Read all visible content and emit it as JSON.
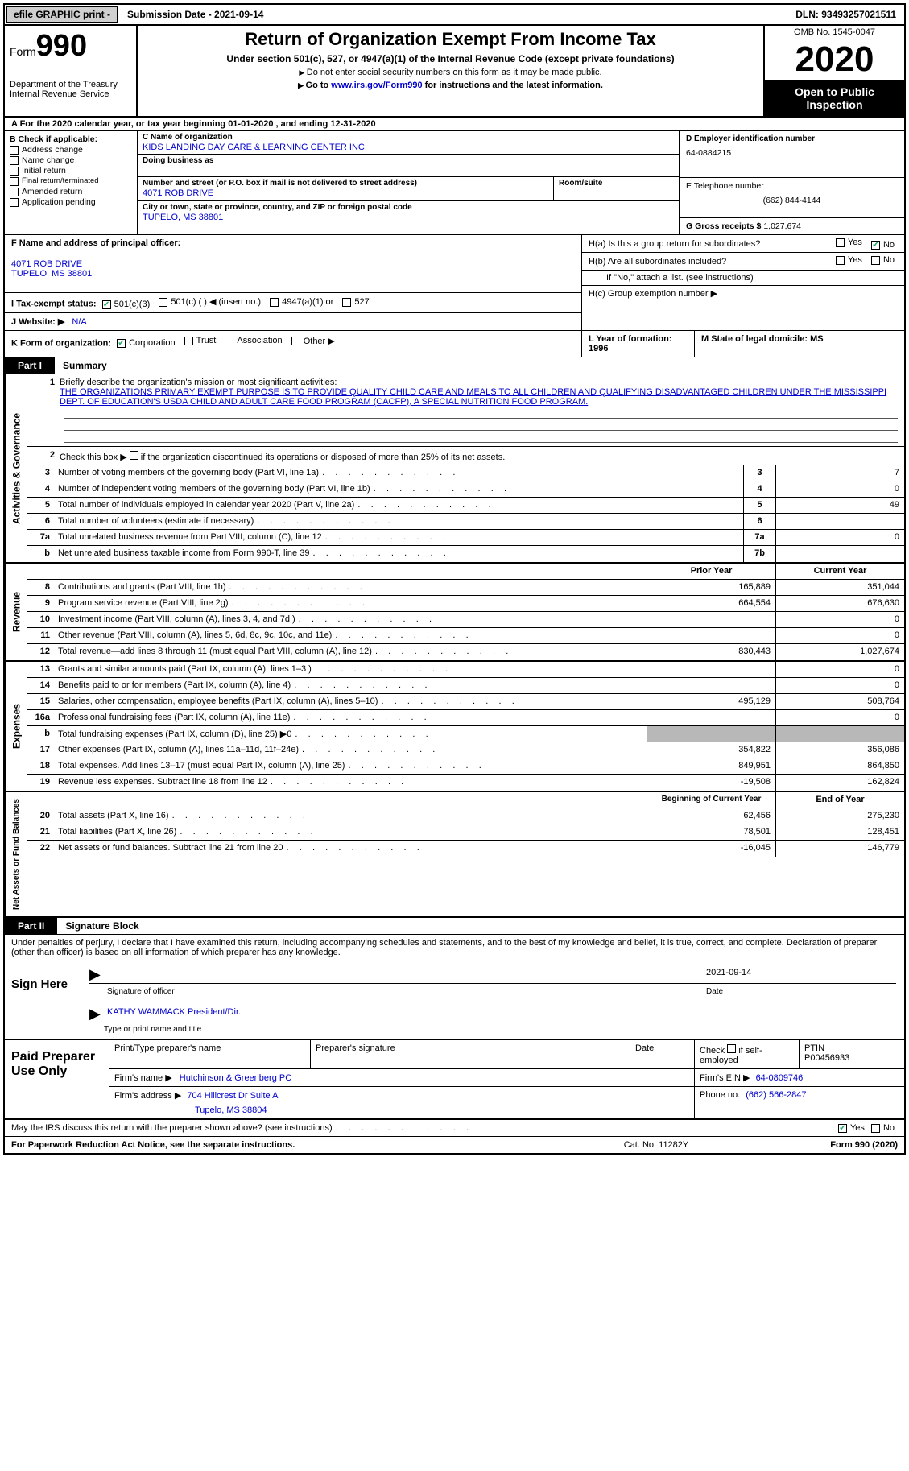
{
  "topbar": {
    "efile": "efile GRAPHIC print -",
    "submission": "Submission Date - 2021-09-14",
    "dln": "DLN: 93493257021511"
  },
  "header": {
    "form_word": "Form",
    "form_num": "990",
    "dept": "Department of the Treasury\nInternal Revenue Service",
    "title": "Return of Organization Exempt From Income Tax",
    "sub1": "Under section 501(c), 527, or 4947(a)(1) of the Internal Revenue Code (except private foundations)",
    "sub2": "Do not enter social security numbers on this form as it may be made public.",
    "sub3_pre": "Go to ",
    "sub3_link": "www.irs.gov/Form990",
    "sub3_post": " for instructions and the latest information.",
    "omb": "OMB No. 1545-0047",
    "year": "2020",
    "inspect": "Open to Public Inspection"
  },
  "line_a": "A For the 2020 calendar year, or tax year beginning 01-01-2020   , and ending 12-31-2020",
  "col_b": {
    "label": "B Check if applicable:",
    "items": [
      "Address change",
      "Name change",
      "Initial return",
      "Final return/terminated",
      "Amended return",
      "Application pending"
    ]
  },
  "box_c": {
    "name_lab": "C Name of organization",
    "name_val": "KIDS LANDING DAY CARE & LEARNING CENTER INC",
    "dba_lab": "Doing business as",
    "addr_lab": "Number and street (or P.O. box if mail is not delivered to street address)",
    "room_lab": "Room/suite",
    "addr_val": "4071 ROB DRIVE",
    "city_lab": "City or town, state or province, country, and ZIP or foreign postal code",
    "city_val": "TUPELO, MS  38801"
  },
  "box_d": {
    "lab": "D Employer identification number",
    "val": "64-0884215"
  },
  "box_e": {
    "lab": "E Telephone number",
    "val": "(662) 844-4144"
  },
  "box_g": {
    "lab": "G Gross receipts $",
    "val": "1,027,674"
  },
  "box_f": {
    "lab": "F Name and address of principal officer:",
    "val1": "4071 ROB DRIVE",
    "val2": "TUPELO, MS  38801"
  },
  "box_h": {
    "a": "H(a)  Is this a group return for subordinates?",
    "b": "H(b)  Are all subordinates included?",
    "note": "If \"No,\" attach a list. (see instructions)",
    "c": "H(c)  Group exemption number ▶"
  },
  "tax_exempt": {
    "lab": "I   Tax-exempt status:",
    "o1": "501(c)(3)",
    "o2": "501(c) (  ) ◀ (insert no.)",
    "o3": "4947(a)(1) or",
    "o4": "527"
  },
  "website": {
    "lab": "J   Website: ▶",
    "val": "N/A"
  },
  "kform": {
    "lab": "K Form of organization:",
    "o1": "Corporation",
    "o2": "Trust",
    "o3": "Association",
    "o4": "Other ▶"
  },
  "yearstate": {
    "l": "L Year of formation: 1996",
    "m": "M State of legal domicile: MS"
  },
  "part1": {
    "tab": "Part I",
    "title": "Summary"
  },
  "mission": {
    "num": "1",
    "lab": "Briefly describe the organization's mission or most significant activities:",
    "text": "THE ORGANIZATIONS PRIMARY EXEMPT PURPOSE IS TO PROVIDE QUALITY CHILD CARE AND MEALS TO ALL CHILDREN AND QUALIFYING DISADVANTAGED CHILDREN UNDER THE MISSISSIPPI DEPT. OF EDUCATION'S USDA CHILD AND ADULT CARE FOOD PROGRAM (CACFP), A SPECIAL NUTRITION FOOD PROGRAM."
  },
  "line2": {
    "num": "2",
    "text": "Check this box ▶       if the organization discontinued its operations or disposed of more than 25% of its net assets."
  },
  "side": {
    "gov": "Activities & Governance",
    "rev": "Revenue",
    "exp": "Expenses",
    "net": "Net Assets or Fund Balances"
  },
  "gov_lines": [
    {
      "n": "3",
      "d": "Number of voting members of the governing body (Part VI, line 1a)",
      "b": "3",
      "v": "7"
    },
    {
      "n": "4",
      "d": "Number of independent voting members of the governing body (Part VI, line 1b)",
      "b": "4",
      "v": "0"
    },
    {
      "n": "5",
      "d": "Total number of individuals employed in calendar year 2020 (Part V, line 2a)",
      "b": "5",
      "v": "49"
    },
    {
      "n": "6",
      "d": "Total number of volunteers (estimate if necessary)",
      "b": "6",
      "v": ""
    },
    {
      "n": "7a",
      "d": "Total unrelated business revenue from Part VIII, column (C), line 12",
      "b": "7a",
      "v": "0"
    },
    {
      "n": "b",
      "d": "Net unrelated business taxable income from Form 990-T, line 39",
      "b": "7b",
      "v": ""
    }
  ],
  "ry_hdr": {
    "prior": "Prior Year",
    "current": "Current Year"
  },
  "rev_lines": [
    {
      "n": "8",
      "d": "Contributions and grants (Part VIII, line 1h)",
      "p": "165,889",
      "c": "351,044"
    },
    {
      "n": "9",
      "d": "Program service revenue (Part VIII, line 2g)",
      "p": "664,554",
      "c": "676,630"
    },
    {
      "n": "10",
      "d": "Investment income (Part VIII, column (A), lines 3, 4, and 7d )",
      "p": "",
      "c": "0"
    },
    {
      "n": "11",
      "d": "Other revenue (Part VIII, column (A), lines 5, 6d, 8c, 9c, 10c, and 11e)",
      "p": "",
      "c": "0"
    },
    {
      "n": "12",
      "d": "Total revenue—add lines 8 through 11 (must equal Part VIII, column (A), line 12)",
      "p": "830,443",
      "c": "1,027,674"
    }
  ],
  "exp_lines": [
    {
      "n": "13",
      "d": "Grants and similar amounts paid (Part IX, column (A), lines 1–3 )",
      "p": "",
      "c": "0"
    },
    {
      "n": "14",
      "d": "Benefits paid to or for members (Part IX, column (A), line 4)",
      "p": "",
      "c": "0"
    },
    {
      "n": "15",
      "d": "Salaries, other compensation, employee benefits (Part IX, column (A), lines 5–10)",
      "p": "495,129",
      "c": "508,764"
    },
    {
      "n": "16a",
      "d": "Professional fundraising fees (Part IX, column (A), line 11e)",
      "p": "",
      "c": "0"
    },
    {
      "n": "b",
      "d": "Total fundraising expenses (Part IX, column (D), line 25) ▶0",
      "p": "gray",
      "c": "gray"
    },
    {
      "n": "17",
      "d": "Other expenses (Part IX, column (A), lines 11a–11d, 11f–24e)",
      "p": "354,822",
      "c": "356,086"
    },
    {
      "n": "18",
      "d": "Total expenses. Add lines 13–17 (must equal Part IX, column (A), line 25)",
      "p": "849,951",
      "c": "864,850"
    },
    {
      "n": "19",
      "d": "Revenue less expenses. Subtract line 18 from line 12",
      "p": "-19,508",
      "c": "162,824"
    }
  ],
  "net_hdr": {
    "begin": "Beginning of Current Year",
    "end": "End of Year"
  },
  "net_lines": [
    {
      "n": "20",
      "d": "Total assets (Part X, line 16)",
      "p": "62,456",
      "c": "275,230"
    },
    {
      "n": "21",
      "d": "Total liabilities (Part X, line 26)",
      "p": "78,501",
      "c": "128,451"
    },
    {
      "n": "22",
      "d": "Net assets or fund balances. Subtract line 21 from line 20",
      "p": "-16,045",
      "c": "146,779"
    }
  ],
  "part2": {
    "tab": "Part II",
    "title": "Signature Block"
  },
  "sig_intro": "Under penalties of perjury, I declare that I have examined this return, including accompanying schedules and statements, and to the best of my knowledge and belief, it is true, correct, and complete. Declaration of preparer (other than officer) is based on all information of which preparer has any knowledge.",
  "sign_here": "Sign Here",
  "sig": {
    "date": "2021-09-14",
    "sig_cap": "Signature of officer",
    "date_cap": "Date",
    "name": "KATHY WAMMACK  President/Dir.",
    "name_cap": "Type or print name and title"
  },
  "prep": {
    "title": "Paid Preparer Use Only",
    "h1": "Print/Type preparer's name",
    "h2": "Preparer's signature",
    "h3": "Date",
    "h4a": "Check",
    "h4b": "if self-employed",
    "h5": "PTIN",
    "ptin": "P00456933",
    "firm_lab": "Firm's name   ▶",
    "firm": "Hutchinson & Greenberg PC",
    "ein_lab": "Firm's EIN ▶",
    "ein": "64-0809746",
    "addr_lab": "Firm's address ▶",
    "addr1": "704 Hillcrest Dr Suite A",
    "addr2": "Tupelo, MS  38804",
    "phone_lab": "Phone no.",
    "phone": "(662) 566-2847"
  },
  "discuss": "May the IRS discuss this return with the preparer shown above? (see instructions)",
  "yes": "Yes",
  "no": "No",
  "footer": {
    "f1": "For Paperwork Reduction Act Notice, see the separate instructions.",
    "f2": "Cat. No. 11282Y",
    "f3": "Form 990 (2020)"
  }
}
